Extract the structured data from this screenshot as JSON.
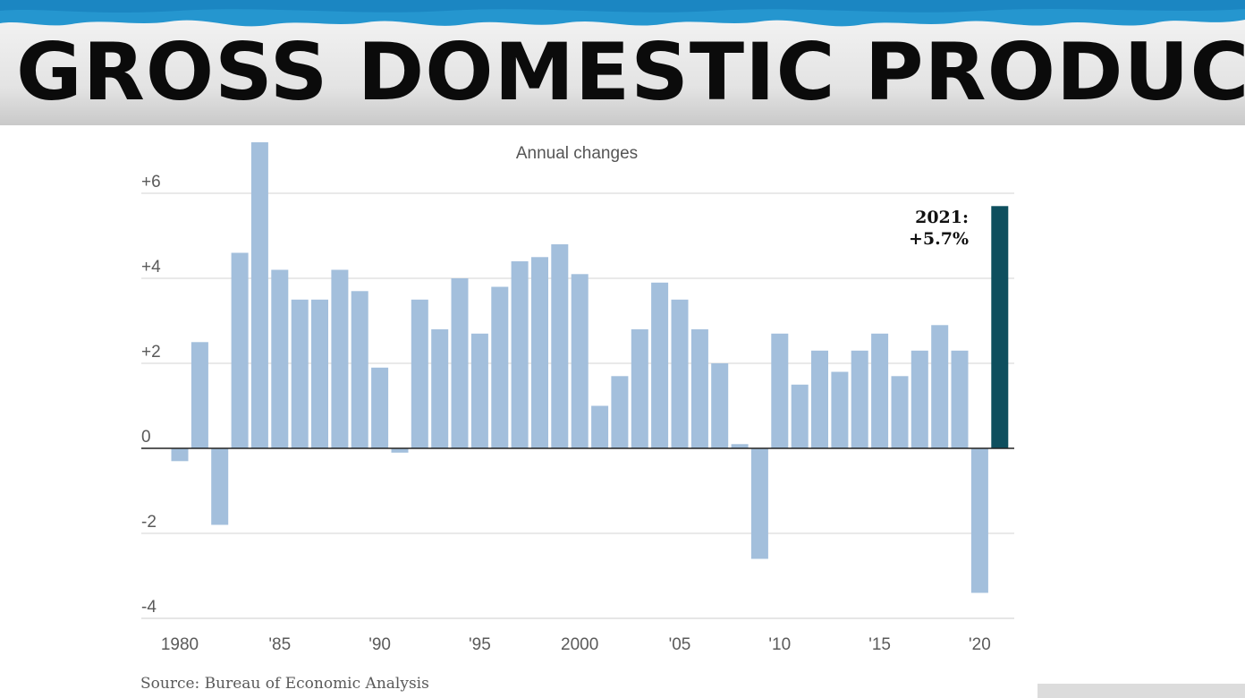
{
  "banner": {
    "title": "GROSS DOMESTIC PRODUCT"
  },
  "chart_data": {
    "type": "bar",
    "subtitle": "Annual changes",
    "x": [
      1980,
      1981,
      1982,
      1983,
      1984,
      1985,
      1986,
      1987,
      1988,
      1989,
      1990,
      1991,
      1992,
      1993,
      1994,
      1995,
      1996,
      1997,
      1998,
      1999,
      2000,
      2001,
      2002,
      2003,
      2004,
      2005,
      2006,
      2007,
      2008,
      2009,
      2010,
      2011,
      2012,
      2013,
      2014,
      2015,
      2016,
      2017,
      2018,
      2019,
      2020,
      2021
    ],
    "values": [
      -0.3,
      2.5,
      -1.8,
      4.6,
      7.2,
      4.2,
      3.5,
      3.5,
      4.2,
      3.7,
      1.9,
      -0.1,
      3.5,
      2.8,
      4.0,
      2.7,
      3.8,
      4.4,
      4.5,
      4.8,
      4.1,
      1.0,
      1.7,
      2.8,
      3.9,
      3.5,
      2.8,
      2.0,
      0.1,
      -2.6,
      2.7,
      1.5,
      2.3,
      1.8,
      2.3,
      2.7,
      1.7,
      2.3,
      2.9,
      2.3,
      -3.4,
      5.7
    ],
    "ylim": [
      -4,
      7.2
    ],
    "y_ticks": [
      {
        "value": 6,
        "label": "+6"
      },
      {
        "value": 4,
        "label": "+4"
      },
      {
        "value": 2,
        "label": "+2"
      },
      {
        "value": 0,
        "label": "0"
      },
      {
        "value": -2,
        "label": "-2"
      },
      {
        "value": -4,
        "label": "-4"
      }
    ],
    "x_ticks": [
      {
        "year": 1980,
        "label": "1980"
      },
      {
        "year": 1985,
        "label": "'85"
      },
      {
        "year": 1990,
        "label": "'90"
      },
      {
        "year": 1995,
        "label": "'95"
      },
      {
        "year": 2000,
        "label": "2000"
      },
      {
        "year": 2005,
        "label": "'05"
      },
      {
        "year": 2010,
        "label": "'10"
      },
      {
        "year": 2015,
        "label": "'15"
      },
      {
        "year": 2020,
        "label": "'20"
      }
    ],
    "grid": true,
    "highlight": {
      "year": 2021,
      "label_line1": "2021:",
      "label_line2": "+5.7%"
    },
    "colors": {
      "bar": "#a3bfdc",
      "highlight": "#0e4f5e",
      "grid": "#e2e2e2",
      "zero": "#222222"
    },
    "source": "Source: Bureau of Economic Analysis"
  }
}
